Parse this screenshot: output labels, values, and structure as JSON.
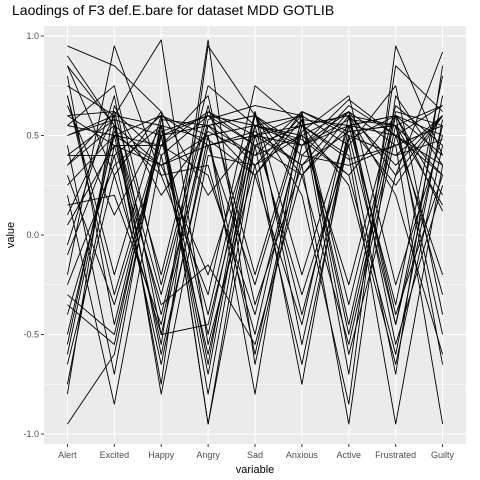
{
  "chart_data": {
    "type": "line",
    "title": "Laodings of F3 def.E.bare for dataset MDD GOTLIB",
    "xlabel": "variable",
    "ylabel": "value",
    "categories": [
      "Alert",
      "Excited",
      "Happy",
      "Angry",
      "Sad",
      "Anxious",
      "Active",
      "Frustrated",
      "Guilty"
    ],
    "ylim": [
      -1.05,
      1.05
    ],
    "yticks": [
      -1.0,
      -0.5,
      0.0,
      0.5,
      1.0
    ],
    "ytick_labels": [
      "-1.0",
      "-0.5",
      "0.0",
      "0.5",
      "1.0"
    ],
    "grid": true,
    "panel_color": "#ebebeb",
    "line_color": "#000000",
    "series": [
      {
        "values": [
          0.95,
          0.85,
          0.62,
          -0.95,
          0.3,
          0.58,
          0.55,
          0.6,
          0.12
        ]
      },
      {
        "values": [
          0.85,
          0.55,
          -0.75,
          0.95,
          0.6,
          0.45,
          0.62,
          -0.45,
          0.55
        ]
      },
      {
        "values": [
          0.7,
          -0.2,
          0.6,
          0.45,
          0.52,
          0.35,
          -0.95,
          0.7,
          0.35
        ]
      },
      {
        "values": [
          0.6,
          0.45,
          -0.35,
          -0.15,
          -0.55,
          0.3,
          0.6,
          0.55,
          0.65
        ]
      },
      {
        "values": [
          0.5,
          0.6,
          0.98,
          -0.55,
          0.35,
          0.6,
          0.45,
          -0.7,
          0.85
        ]
      },
      {
        "values": [
          0.35,
          0.62,
          -0.2,
          0.75,
          0.55,
          0.48,
          0.3,
          0.6,
          -0.65
        ]
      },
      {
        "values": [
          0.2,
          -0.85,
          0.4,
          0.6,
          0.45,
          -0.75,
          0.55,
          0.25,
          0.6
        ]
      },
      {
        "values": [
          0.05,
          0.45,
          0.45,
          0.3,
          -0.4,
          0.52,
          0.7,
          -0.25,
          0.5
        ]
      },
      {
        "values": [
          -0.05,
          0.7,
          -0.5,
          0.55,
          0.6,
          0.2,
          -0.85,
          0.95,
          0.4
        ]
      },
      {
        "values": [
          -0.2,
          0.95,
          0.3,
          -0.3,
          0.75,
          0.55,
          0.38,
          0.45,
          -0.95
        ]
      },
      {
        "values": [
          -0.35,
          -0.55,
          0.55,
          0.48,
          0.3,
          0.62,
          0.5,
          -0.45,
          0.7
        ]
      },
      {
        "values": [
          -0.5,
          0.5,
          -0.55,
          0.98,
          -0.65,
          0.4,
          0.65,
          0.5,
          0.3
        ]
      },
      {
        "values": [
          -0.65,
          0.3,
          0.62,
          0.2,
          0.5,
          -0.3,
          0.45,
          0.75,
          -0.4
        ]
      },
      {
        "values": [
          -0.8,
          0.65,
          0.2,
          0.52,
          0.4,
          0.62,
          -0.6,
          0.3,
          0.92
        ]
      },
      {
        "values": [
          -0.95,
          -0.6,
          0.5,
          -0.7,
          0.55,
          0.45,
          0.55,
          0.6,
          0.2
        ]
      },
      {
        "values": [
          0.65,
          0.1,
          0.55,
          -0.8,
          0.5,
          0.35,
          0.62,
          0.45,
          0.55
        ]
      },
      {
        "values": [
          0.55,
          0.75,
          -0.25,
          0.65,
          -0.2,
          0.58,
          -0.7,
          0.85,
          0.62
        ]
      },
      {
        "values": [
          0.4,
          0.58,
          0.5,
          -0.4,
          0.62,
          -0.55,
          0.5,
          0.4,
          0.48
        ]
      },
      {
        "values": [
          0.75,
          0.6,
          -0.8,
          0.4,
          0.35,
          0.5,
          0.3,
          -0.6,
          0.58
        ]
      },
      {
        "values": [
          0.3,
          -0.35,
          0.45,
          0.62,
          0.5,
          0.45,
          0.68,
          0.5,
          -0.2
        ]
      },
      {
        "values": [
          -0.1,
          0.5,
          0.6,
          -0.95,
          0.45,
          0.55,
          0.4,
          -0.95,
          0.35
        ]
      },
      {
        "values": [
          0.9,
          0.55,
          0.35,
          0.5,
          -0.8,
          0.62,
          0.52,
          0.55,
          0.15
        ]
      },
      {
        "values": [
          0.45,
          -0.7,
          0.58,
          0.55,
          0.3,
          -0.45,
          0.6,
          0.35,
          0.6
        ]
      },
      {
        "values": [
          -0.4,
          0.4,
          -0.65,
          0.5,
          0.55,
          0.5,
          -0.25,
          0.65,
          0.45
        ]
      },
      {
        "values": [
          0.6,
          0.62,
          0.4,
          -0.6,
          0.45,
          0.3,
          0.55,
          -0.35,
          0.8
        ]
      },
      {
        "values": [
          0.15,
          0.2,
          -0.45,
          0.58,
          0.65,
          0.6,
          -0.5,
          0.55,
          0.3
        ]
      },
      {
        "values": [
          -0.6,
          0.52,
          0.3,
          0.35,
          -0.5,
          0.55,
          0.6,
          0.2,
          -0.6
        ]
      },
      {
        "values": [
          0.8,
          -0.45,
          0.52,
          0.6,
          0.35,
          -0.65,
          0.48,
          0.6,
          0.4
        ]
      },
      {
        "values": [
          -0.25,
          0.35,
          0.55,
          -0.5,
          0.6,
          0.4,
          0.35,
          0.45,
          0.55
        ]
      },
      {
        "values": [
          0.5,
          0.58,
          -0.6,
          0.45,
          0.5,
          0.55,
          0.6,
          -0.55,
          0.25
        ]
      },
      {
        "values": [
          0.25,
          0.5,
          0.45,
          0.7,
          -0.35,
          0.35,
          0.52,
          0.55,
          -0.3
        ]
      },
      {
        "values": [
          -0.75,
          0.45,
          0.35,
          -0.2,
          0.55,
          0.6,
          -0.45,
          0.6,
          0.5
        ]
      },
      {
        "values": [
          0.7,
          -0.3,
          0.5,
          0.55,
          0.4,
          0.5,
          0.62,
          0.3,
          0.6
        ]
      },
      {
        "values": [
          0.1,
          0.6,
          0.55,
          -0.65,
          0.62,
          -0.2,
          0.55,
          0.5,
          0.35
        ]
      },
      {
        "values": [
          -0.55,
          0.55,
          -0.3,
          0.62,
          0.45,
          0.55,
          0.25,
          -0.65,
          0.45
        ]
      },
      {
        "values": [
          0.4,
          0.4,
          0.6,
          0.5,
          -0.6,
          0.45,
          0.58,
          0.55,
          -0.5
        ]
      },
      {
        "values": [
          0.85,
          0.3,
          -0.5,
          -0.45,
          0.5,
          0.6,
          -0.35,
          0.62,
          0.55
        ]
      },
      {
        "values": [
          -0.3,
          -0.5,
          0.5,
          0.6,
          0.55,
          -0.4,
          0.5,
          0.4,
          0.6
        ]
      },
      {
        "values": [
          0.55,
          0.5,
          0.35,
          0.45,
          -0.25,
          0.55,
          0.6,
          -0.4,
          0.3
        ]
      },
      {
        "values": [
          0.35,
          0.55,
          -0.4,
          0.55,
          0.6,
          0.3,
          -0.55,
          0.5,
          0.65
        ]
      }
    ]
  }
}
